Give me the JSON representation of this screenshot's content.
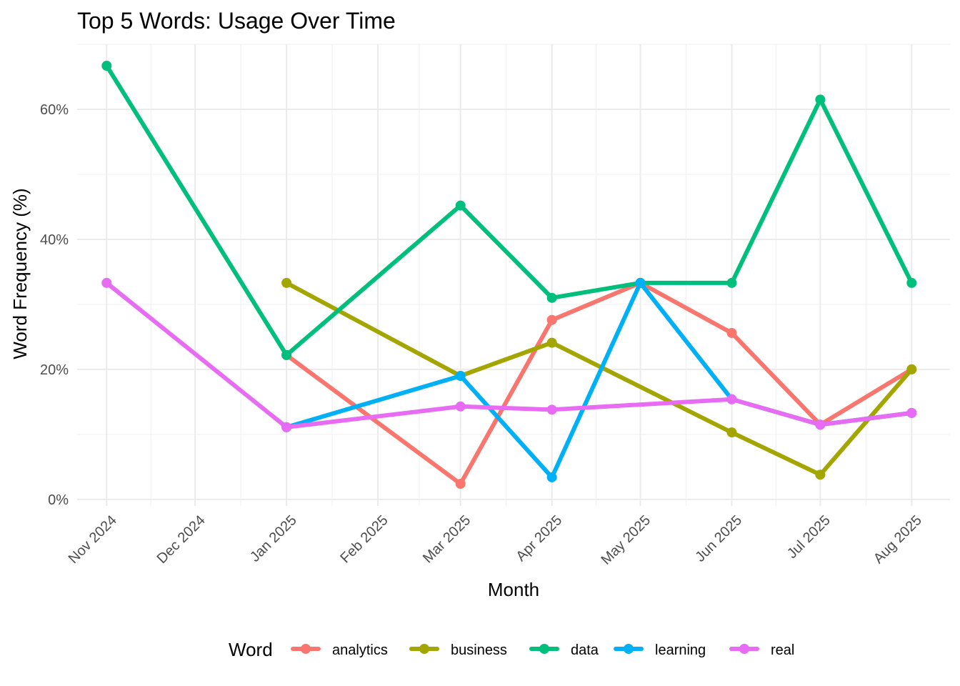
{
  "chart_data": {
    "type": "line",
    "title": "Top 5 Words: Usage Over Time",
    "xlabel": "Month",
    "ylabel": "Word Frequency (%)",
    "x_ticks": [
      "2024-11-01",
      "2024-12-01",
      "2025-01-01",
      "2025-02-01",
      "2025-03-01",
      "2025-04-01",
      "2025-05-01",
      "2025-06-01",
      "2025-07-01",
      "2025-08-01"
    ],
    "x_tick_labels": [
      "Nov 2024",
      "Dec 2024",
      "Jan 2025",
      "Feb 2025",
      "Mar 2025",
      "Apr 2025",
      "May 2025",
      "Jun 2025",
      "Jul 2025",
      "Aug 2025"
    ],
    "xlim": [
      "2024-10-22",
      "2025-08-14"
    ],
    "ylim": [
      -0.01,
      0.7
    ],
    "y_ticks": [
      0,
      0.2,
      0.4,
      0.6
    ],
    "y_tick_labels": [
      "0%",
      "20%",
      "40%",
      "60%"
    ],
    "grid": true,
    "legend": {
      "title": "Word",
      "position": "bottom"
    },
    "series": [
      {
        "name": "analytics",
        "color": "#F8766D",
        "points": [
          {
            "x": "2025-01-01",
            "y": 0.222
          },
          {
            "x": "2025-03-01",
            "y": 0.024
          },
          {
            "x": "2025-04-01",
            "y": 0.276
          },
          {
            "x": "2025-05-01",
            "y": 0.333
          },
          {
            "x": "2025-06-01",
            "y": 0.256
          },
          {
            "x": "2025-07-01",
            "y": 0.115
          },
          {
            "x": "2025-08-01",
            "y": 0.2
          }
        ]
      },
      {
        "name": "business",
        "color": "#A3A500",
        "points": [
          {
            "x": "2025-01-01",
            "y": 0.333
          },
          {
            "x": "2025-03-01",
            "y": 0.19
          },
          {
            "x": "2025-04-01",
            "y": 0.241
          },
          {
            "x": "2025-06-01",
            "y": 0.103
          },
          {
            "x": "2025-07-01",
            "y": 0.038
          },
          {
            "x": "2025-08-01",
            "y": 0.2
          }
        ]
      },
      {
        "name": "data",
        "color": "#00BF7D",
        "points": [
          {
            "x": "2024-11-01",
            "y": 0.667
          },
          {
            "x": "2025-01-01",
            "y": 0.222
          },
          {
            "x": "2025-03-01",
            "y": 0.452
          },
          {
            "x": "2025-04-01",
            "y": 0.31
          },
          {
            "x": "2025-05-01",
            "y": 0.333
          },
          {
            "x": "2025-06-01",
            "y": 0.333
          },
          {
            "x": "2025-07-01",
            "y": 0.615
          },
          {
            "x": "2025-08-01",
            "y": 0.333
          }
        ]
      },
      {
        "name": "learning",
        "color": "#00B0F6",
        "points": [
          {
            "x": "2025-01-01",
            "y": 0.111
          },
          {
            "x": "2025-03-01",
            "y": 0.19
          },
          {
            "x": "2025-04-01",
            "y": 0.034
          },
          {
            "x": "2025-05-01",
            "y": 0.333
          },
          {
            "x": "2025-06-01",
            "y": 0.154
          },
          {
            "x": "2025-07-01",
            "y": 0.115
          },
          {
            "x": "2025-08-01",
            "y": 0.133
          }
        ]
      },
      {
        "name": "real",
        "color": "#E76BF3",
        "points": [
          {
            "x": "2024-11-01",
            "y": 0.333
          },
          {
            "x": "2025-01-01",
            "y": 0.111
          },
          {
            "x": "2025-03-01",
            "y": 0.143
          },
          {
            "x": "2025-04-01",
            "y": 0.138
          },
          {
            "x": "2025-06-01",
            "y": 0.154
          },
          {
            "x": "2025-07-01",
            "y": 0.115
          },
          {
            "x": "2025-08-01",
            "y": 0.133
          }
        ]
      }
    ]
  }
}
